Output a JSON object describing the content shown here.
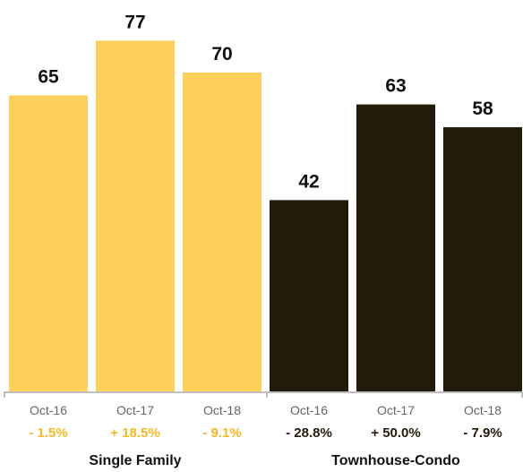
{
  "chart_data": {
    "type": "bar",
    "ylim": [
      0,
      82
    ],
    "groups": [
      {
        "name": "Single Family",
        "color": "#fcd05a",
        "change_color": "#f4b820",
        "bars": [
          {
            "category": "Oct-16",
            "value": 65,
            "change": "- 1.5%"
          },
          {
            "category": "Oct-17",
            "value": 77,
            "change": "+ 18.5%"
          },
          {
            "category": "Oct-18",
            "value": 70,
            "change": "- 9.1%"
          }
        ]
      },
      {
        "name": "Townhouse-Condo",
        "color": "#221b09",
        "change_color": "#221b09",
        "bars": [
          {
            "category": "Oct-16",
            "value": 42,
            "change": "- 28.8%"
          },
          {
            "category": "Oct-17",
            "value": 63,
            "change": "+ 50.0%"
          },
          {
            "category": "Oct-18",
            "value": 58,
            "change": "- 7.9%"
          }
        ]
      }
    ],
    "tick_label_color": "#666666",
    "axis_color": "#bfbfbf",
    "grid": false,
    "legend": "none"
  }
}
